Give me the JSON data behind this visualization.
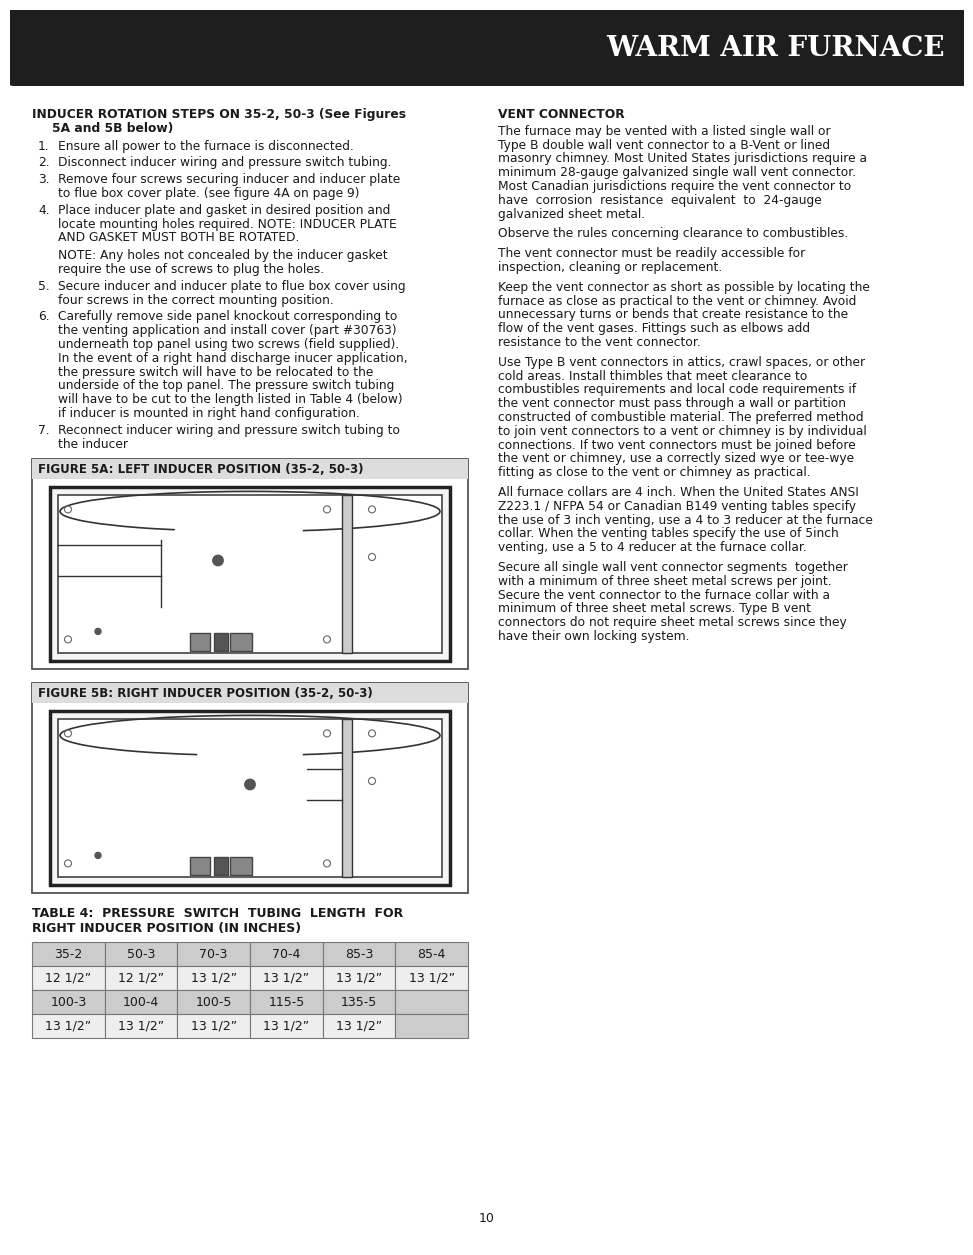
{
  "title": "WARM AIR FURNACE",
  "page_number": "10",
  "header_bg": "#1e1e1e",
  "header_text_color": "#ffffff",
  "body_bg": "#ffffff",
  "body_text_color": "#1a1a1a",
  "inducer_title_line1": "INDUCER ROTATION STEPS ON 35-2, 50-3 (See Figures",
  "inducer_title_line2": "5A and 5B below)",
  "step1": "Ensure all power to the furnace is disconnected.",
  "step2": "Disconnect inducer wiring and pressure switch tubing.",
  "step3_l1": "Remove four screws securing inducer and inducer plate",
  "step3_l2": "to flue box cover plate. (see figure 4A on page 9)",
  "step4_l1": "Place inducer plate and gasket in desired position and",
  "step4_l2": "locate mounting holes required. NOTE: INDUCER PLATE",
  "step4_l3": "AND GASKET MUST BOTH BE ROTATED.",
  "step4_note_l1": "NOTE: Any holes not concealed by the inducer gasket",
  "step4_note_l2": "require the use of screws to plug the holes.",
  "step5_l1": "Secure inducer and inducer plate to flue box cover using",
  "step5_l2": "four screws in the correct mounting position.",
  "step6_l1": "Carefully remove side panel knockout corresponding to",
  "step6_l2": "the venting application and install cover (part #30763)",
  "step6_l3": "underneath top panel using two screws (field supplied).",
  "step6_l4": "In the event of a right hand discharge inucer application,",
  "step6_l5": "the pressure switch will have to be relocated to the",
  "step6_l6": "underside of the top panel. The pressure switch tubing",
  "step6_l7": "will have to be cut to the length listed in Table 4 (below)",
  "step6_l8": "if inducer is mounted in right hand configuration.",
  "step7_l1": "Reconnect inducer wiring and pressure switch tubing to",
  "step7_l2": "the inducer",
  "fig5a_title": "FIGURE 5A: LEFT INDUCER POSITION (35-2, 50-3)",
  "fig5b_title": "FIGURE 5B: RIGHT INDUCER POSITION (35-2, 50-3)",
  "vent_title": "VENT CONNECTOR",
  "vent_p1_lines": [
    "The furnace may be vented with a listed single wall or",
    "Type B double wall vent connector to a B-Vent or lined",
    "masonry chimney. Most United States jurisdictions require a",
    "minimum 28-gauge galvanized single wall vent connector.",
    "Most Canadian jurisdictions require the vent connector to",
    "have  corrosion  resistance  equivalent  to  24-gauge",
    "galvanized sheet metal."
  ],
  "vent_p2": "Observe the rules concerning clearance to combustibles.",
  "vent_p3_lines": [
    "The vent connector must be readily accessible for",
    "inspection, cleaning or replacement."
  ],
  "vent_p4_lines": [
    "Keep the vent connector as short as possible by locating the",
    "furnace as close as practical to the vent or chimney. Avoid",
    "unnecessary turns or bends that create resistance to the",
    "flow of the vent gases. Fittings such as elbows add",
    "resistance to the vent connector."
  ],
  "vent_p5_lines": [
    "Use Type B vent connectors in attics, crawl spaces, or other",
    "cold areas. Install thimbles that meet clearance to",
    "combustibles requirements and local code requirements if",
    "the vent connector must pass through a wall or partition",
    "constructed of combustible material. The preferred method",
    "to join vent connectors to a vent or chimney is by individual",
    "connections. If two vent connectors must be joined before",
    "the vent or chimney, use a correctly sized wye or tee-wye",
    "fitting as close to the vent or chimney as practical."
  ],
  "vent_p6_lines": [
    "All furnace collars are 4 inch. When the United States ANSI",
    "Z223.1 / NFPA 54 or Canadian B149 venting tables specify",
    "the use of 3 inch venting, use a 4 to 3 reducer at the furnace",
    "collar. When the venting tables specify the use of 5inch",
    "venting, use a 5 to 4 reducer at the furnace collar."
  ],
  "vent_p7_lines": [
    "Secure all single wall vent connector segments  together",
    "with a minimum of three sheet metal screws per joint.",
    "Secure the vent connector to the furnace collar with a",
    "minimum of three sheet metal screws. Type B vent",
    "connectors do not require sheet metal screws since they",
    "have their own locking system."
  ],
  "table4_title_l1": "TABLE 4:  PRESSURE  SWITCH  TUBING  LENGTH  FOR",
  "table4_title_l2": "RIGHT INDUCER POSITION (IN INCHES)",
  "table_headers1": [
    "35-2",
    "50-3",
    "70-3",
    "70-4",
    "85-3",
    "85-4"
  ],
  "table_row1": [
    "12 1/2”",
    "12 1/2”",
    "13 1/2”",
    "13 1/2”",
    "13 1/2”",
    "13 1/2”"
  ],
  "table_headers2": [
    "100-3",
    "100-4",
    "100-5",
    "115-5",
    "135-5",
    ""
  ],
  "table_row2": [
    "13 1/2”",
    "13 1/2”",
    "13 1/2”",
    "13 1/2”",
    "13 1/2”",
    ""
  ],
  "table_header_bg": "#cccccc",
  "table_row_bg": "#eeeeee",
  "table_empty_bg": "#cccccc"
}
